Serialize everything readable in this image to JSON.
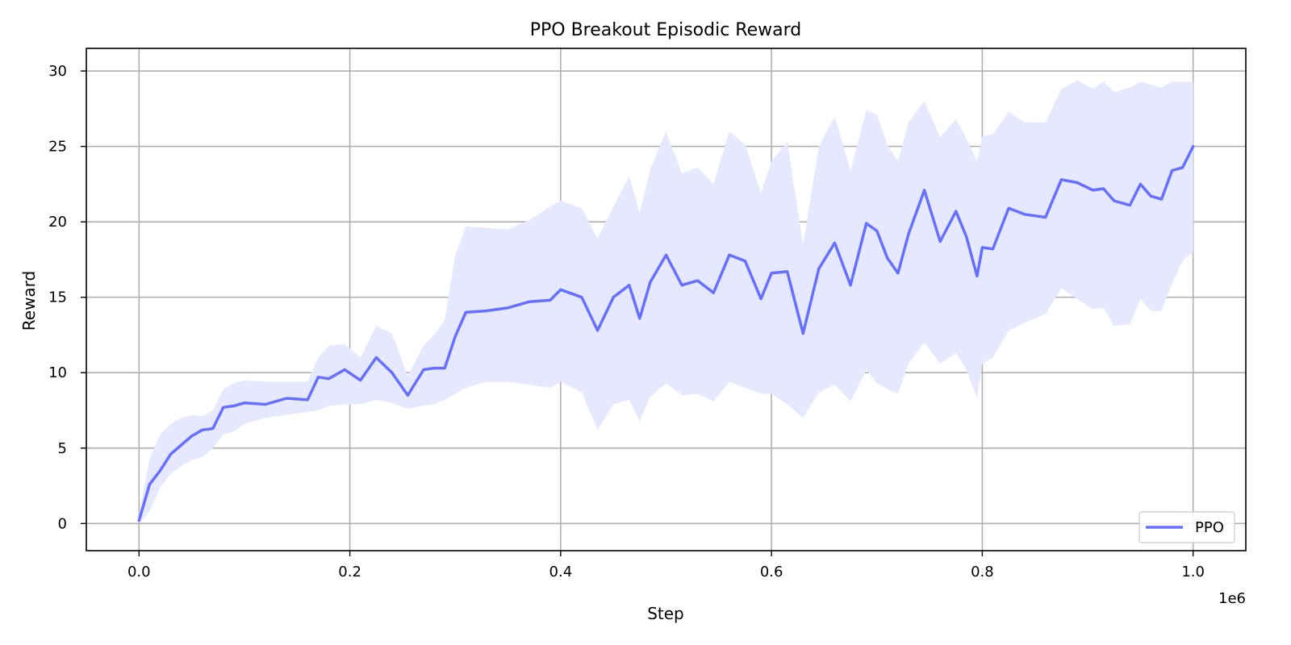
{
  "chart_data": {
    "type": "line",
    "title": "PPO Breakout Episodic Reward",
    "xlabel": "Step",
    "ylabel": "Reward",
    "x_offset_label": "1e6",
    "xlim": [
      -0.05,
      1.05
    ],
    "ylim": [
      -1.8,
      31.5
    ],
    "xticks": [
      0.0,
      0.2,
      0.4,
      0.6,
      0.8,
      1.0
    ],
    "xtick_labels": [
      "0.0",
      "0.2",
      "0.4",
      "0.6",
      "0.8",
      "1.0"
    ],
    "yticks": [
      0,
      5,
      10,
      15,
      20,
      25,
      30
    ],
    "ytick_labels": [
      "0",
      "5",
      "10",
      "15",
      "20",
      "25",
      "30"
    ],
    "grid": true,
    "legend": {
      "position": "lower-right",
      "entries": [
        "PPO"
      ]
    },
    "colors": {
      "line": "#6670ff",
      "band": "#e6e8ff"
    },
    "series": [
      {
        "name": "PPO",
        "x": [
          0.0,
          0.01,
          0.02,
          0.03,
          0.04,
          0.05,
          0.06,
          0.07,
          0.08,
          0.09,
          0.1,
          0.12,
          0.14,
          0.16,
          0.17,
          0.18,
          0.195,
          0.21,
          0.225,
          0.24,
          0.255,
          0.27,
          0.28,
          0.29,
          0.3,
          0.31,
          0.33,
          0.35,
          0.37,
          0.39,
          0.4,
          0.42,
          0.435,
          0.45,
          0.465,
          0.475,
          0.485,
          0.5,
          0.515,
          0.53,
          0.545,
          0.56,
          0.575,
          0.59,
          0.6,
          0.615,
          0.63,
          0.645,
          0.66,
          0.675,
          0.69,
          0.7,
          0.71,
          0.72,
          0.73,
          0.745,
          0.76,
          0.775,
          0.785,
          0.795,
          0.8,
          0.81,
          0.825,
          0.84,
          0.86,
          0.875,
          0.89,
          0.905,
          0.915,
          0.925,
          0.94,
          0.95,
          0.96,
          0.97,
          0.98,
          0.99,
          1.0
        ],
        "y": [
          0.2,
          2.6,
          3.5,
          4.6,
          5.2,
          5.8,
          6.2,
          6.3,
          7.7,
          7.8,
          8.0,
          7.9,
          8.3,
          8.2,
          9.7,
          9.6,
          10.2,
          9.5,
          11.0,
          10.0,
          8.5,
          10.2,
          10.3,
          10.3,
          12.4,
          14.0,
          14.1,
          14.3,
          14.7,
          14.8,
          15.5,
          15.0,
          12.8,
          15.0,
          15.8,
          13.6,
          16.0,
          17.8,
          15.8,
          16.1,
          15.3,
          17.8,
          17.4,
          14.9,
          16.6,
          16.7,
          12.6,
          16.9,
          18.6,
          15.8,
          19.9,
          19.4,
          17.6,
          16.6,
          19.2,
          22.1,
          18.7,
          20.7,
          19.0,
          16.4,
          18.3,
          18.2,
          20.9,
          20.5,
          20.3,
          22.8,
          22.6,
          22.1,
          22.2,
          21.4,
          21.1,
          22.5,
          21.7,
          21.5,
          23.4,
          23.6,
          25.0
        ],
        "lower": [
          0.0,
          0.8,
          2.4,
          3.3,
          3.8,
          4.2,
          4.4,
          5.0,
          5.9,
          6.1,
          6.6,
          7.0,
          7.2,
          7.4,
          7.5,
          7.8,
          7.9,
          7.9,
          8.2,
          8.0,
          7.6,
          7.8,
          7.9,
          8.2,
          8.6,
          9.0,
          9.4,
          9.4,
          9.2,
          9.0,
          9.4,
          8.7,
          6.2,
          7.9,
          8.2,
          6.8,
          8.4,
          9.3,
          8.5,
          8.6,
          8.1,
          9.4,
          9.0,
          8.6,
          8.6,
          7.9,
          7.0,
          8.7,
          9.2,
          8.1,
          10.2,
          9.3,
          8.9,
          8.6,
          10.6,
          12.0,
          10.6,
          11.3,
          10.2,
          8.3,
          10.6,
          11.0,
          12.8,
          13.3,
          13.9,
          15.6,
          14.9,
          14.2,
          14.3,
          13.1,
          13.2,
          14.9,
          14.1,
          14.1,
          15.9,
          17.4,
          18.0
        ],
        "upper": [
          0.6,
          4.3,
          5.9,
          6.6,
          7.0,
          7.2,
          7.1,
          7.5,
          8.9,
          9.3,
          9.5,
          9.4,
          9.4,
          9.4,
          11.0,
          11.8,
          11.9,
          11.0,
          13.1,
          12.6,
          9.8,
          11.8,
          12.5,
          13.5,
          17.8,
          19.7,
          19.6,
          19.5,
          20.1,
          21.0,
          21.4,
          20.9,
          18.9,
          21.0,
          23.0,
          20.6,
          23.5,
          26.0,
          23.2,
          23.6,
          22.5,
          26.0,
          25.1,
          21.9,
          24.0,
          25.3,
          18.5,
          25.0,
          27.0,
          23.4,
          27.4,
          27.1,
          25.1,
          24.0,
          26.6,
          28.0,
          25.6,
          26.8,
          25.5,
          24.0,
          25.7,
          25.8,
          27.3,
          26.6,
          26.6,
          28.8,
          29.4,
          28.8,
          29.3,
          28.6,
          28.9,
          29.3,
          29.1,
          28.9,
          29.3,
          29.3,
          29.3
        ]
      }
    ]
  }
}
